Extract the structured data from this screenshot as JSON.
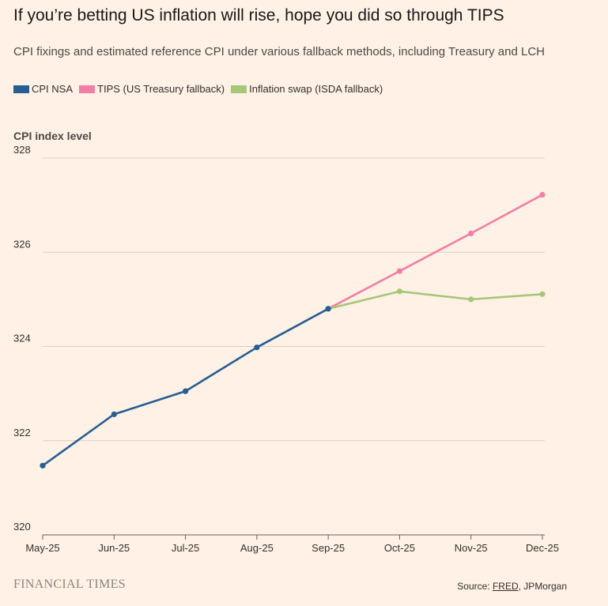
{
  "header": {
    "title": "If you’re betting US inflation will rise, hope you did so through TIPS",
    "subtitle": "CPI fixings and estimated reference CPI under various fallback methods, including Treasury and LCH"
  },
  "footer": {
    "brand": "FINANCIAL TIMES",
    "source_prefix": "Source: ",
    "source_link": "FRED",
    "source_suffix": ", JPMorgan"
  },
  "colors": {
    "cpi": "#275d91",
    "tips": "#f07ea5",
    "swap": "#a6c777",
    "grid": "#d9cfc6",
    "axis": "#66605c",
    "text": "#33302e"
  },
  "chart_data": {
    "type": "line",
    "ylabel": "CPI index level",
    "categories": [
      "May-25",
      "Jun-25",
      "Jul-25",
      "Aug-25",
      "Sep-25",
      "Oct-25",
      "Nov-25",
      "Dec-25"
    ],
    "ylim": [
      320,
      328
    ],
    "yticks": [
      320,
      322,
      324,
      326,
      328
    ],
    "grid": true,
    "legend_position": "top-left",
    "series": [
      {
        "name": "CPI NSA",
        "color": "#275d91",
        "values": [
          321.47,
          322.56,
          323.05,
          323.98,
          324.8,
          null,
          null,
          null
        ]
      },
      {
        "name": "TIPS (US Treasury fallback)",
        "color": "#f07ea5",
        "values": [
          null,
          null,
          null,
          null,
          324.8,
          325.6,
          326.4,
          327.22
        ]
      },
      {
        "name": "Inflation swap (ISDA fallback)",
        "color": "#a6c777",
        "values": [
          null,
          null,
          null,
          null,
          324.8,
          325.17,
          325.0,
          325.11
        ]
      }
    ]
  }
}
